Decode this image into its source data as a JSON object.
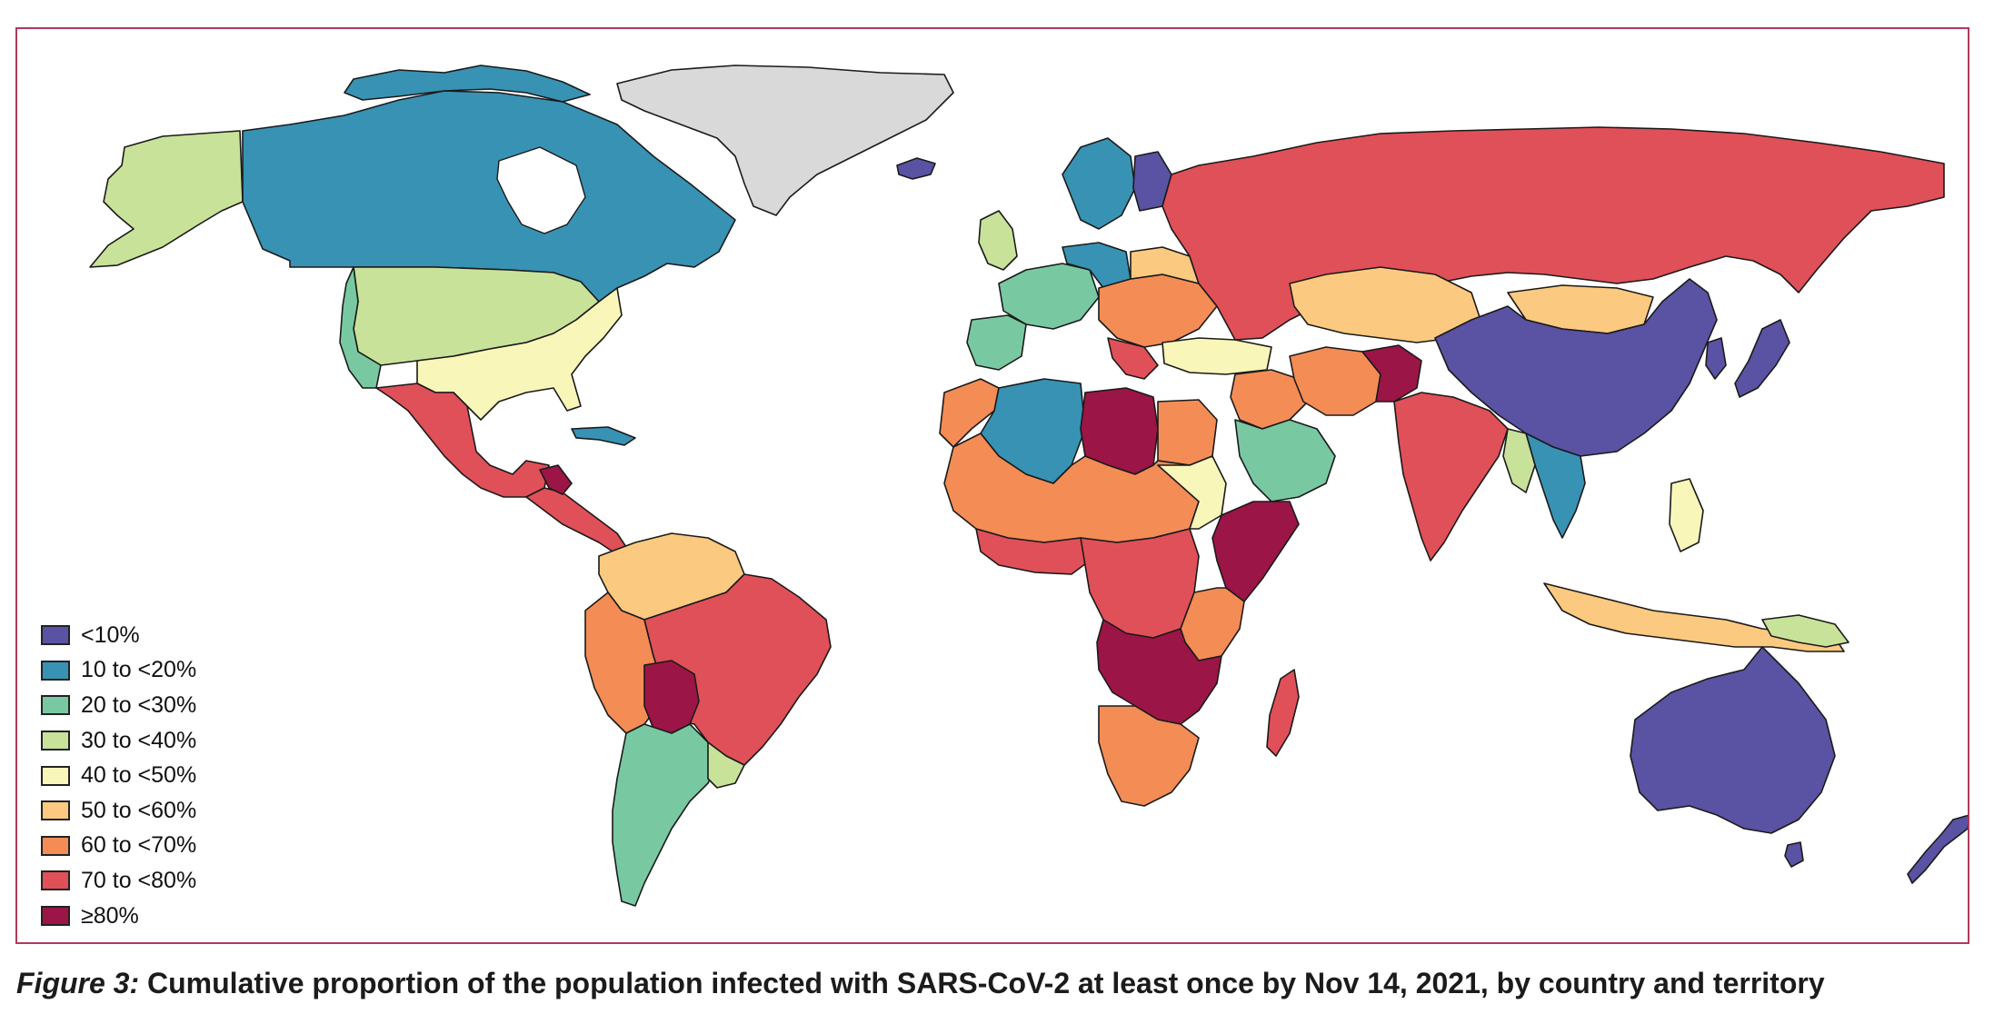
{
  "figure": {
    "label": "Figure 3:",
    "title": "Cumulative proportion of the population infected with SARS-CoV-2 at least once by Nov 14, 2021, by country and territory"
  },
  "colors": {
    "no_data": "#d9d9d9",
    "border": "#b03a5b"
  },
  "legend": [
    {
      "label": "<10%",
      "color": "#5a52a3"
    },
    {
      "label": "10 to <20%",
      "color": "#3892b3"
    },
    {
      "label": "20 to <30%",
      "color": "#78c9a2"
    },
    {
      "label": "30 to <40%",
      "color": "#c8e29a"
    },
    {
      "label": "40 to <50%",
      "color": "#f8f6b9"
    },
    {
      "label": "50 to <60%",
      "color": "#fbc97f"
    },
    {
      "label": "60 to <70%",
      "color": "#f48c55"
    },
    {
      "label": "70 to <80%",
      "color": "#e05058"
    },
    {
      "label": "≥80%",
      "color": "#9b1546"
    }
  ]
}
